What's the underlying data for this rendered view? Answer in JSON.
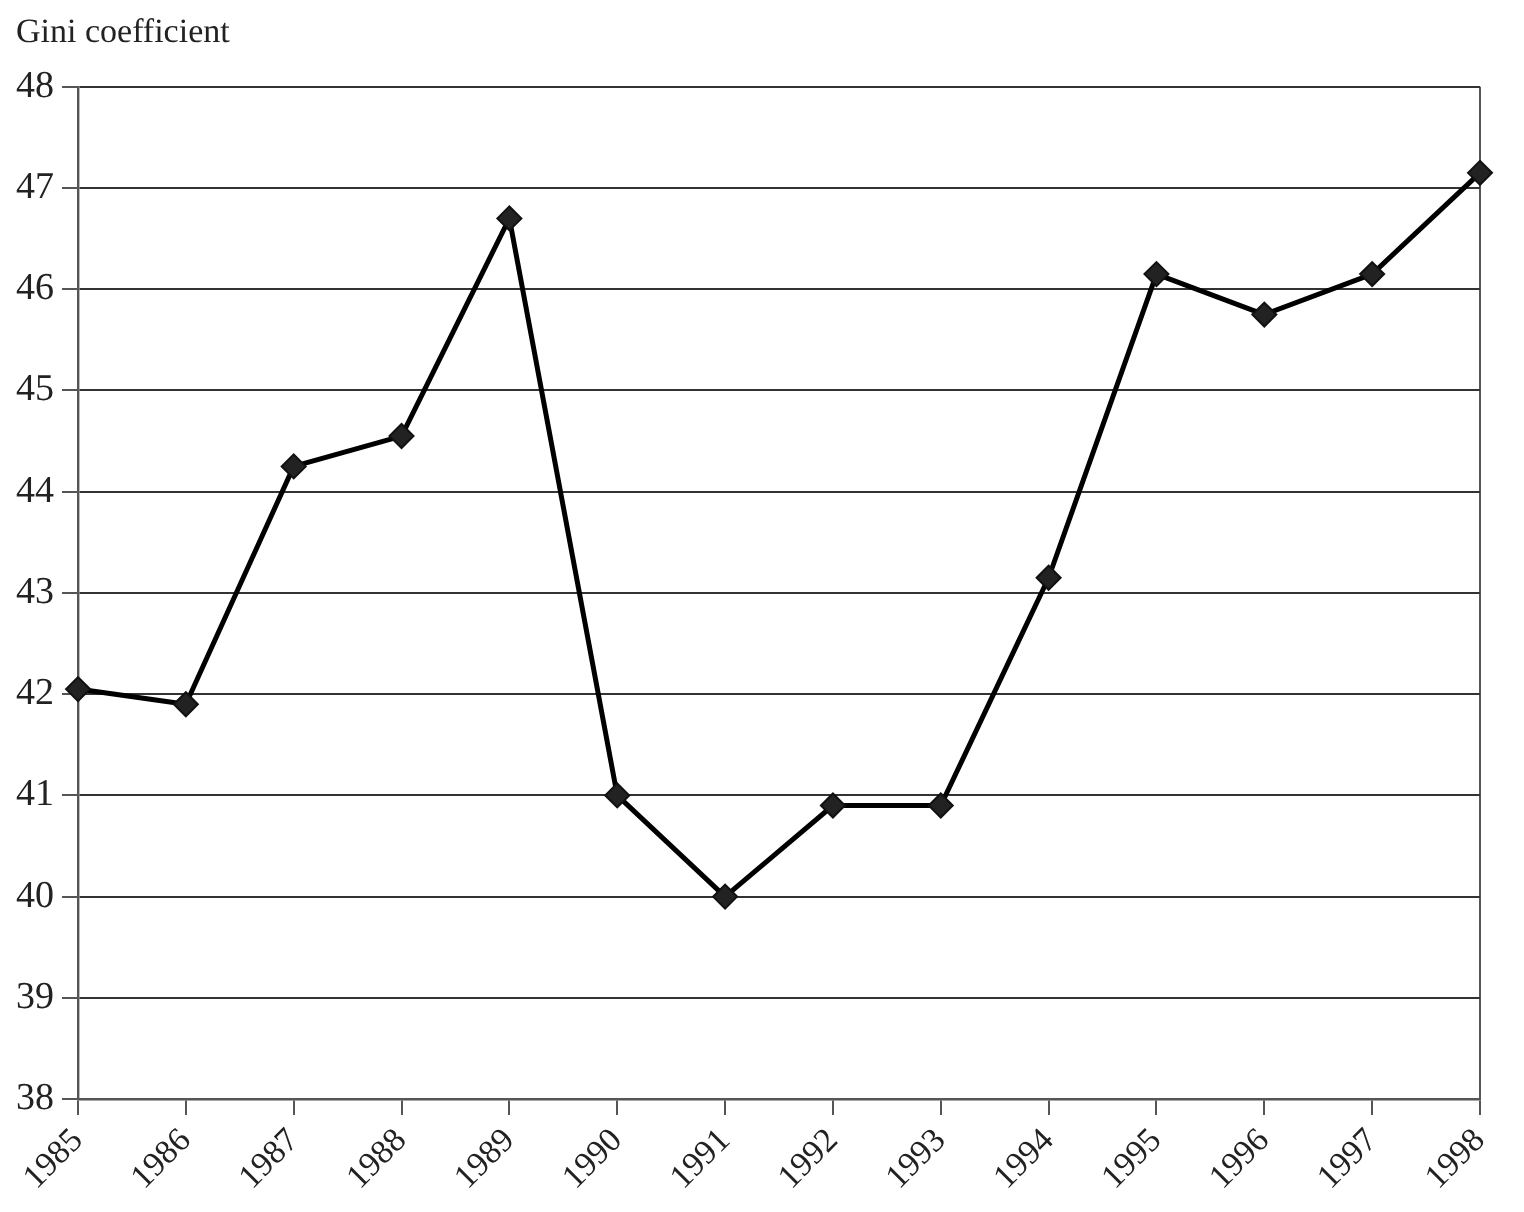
{
  "chart_data": {
    "type": "line",
    "ylabel": "Gini coefficient",
    "categories": [
      "1985",
      "1986",
      "1987",
      "1988",
      "1989",
      "1990",
      "1991",
      "1992",
      "1993",
      "1994",
      "1995",
      "1996",
      "1997",
      "1998"
    ],
    "series": [
      {
        "color": "#000000",
        "values": [
          42.05,
          41.9,
          44.25,
          44.55,
          46.7,
          41.0,
          40.0,
          40.9,
          40.9,
          43.15,
          46.15,
          45.75,
          46.15,
          47.15
        ]
      }
    ],
    "ylim": [
      38,
      48
    ],
    "yticks": [
      38,
      39,
      40,
      41,
      42,
      43,
      44,
      45,
      46,
      47,
      48
    ],
    "grid": "y",
    "legend": false,
    "marker": "diamond",
    "line_style": "solid"
  }
}
